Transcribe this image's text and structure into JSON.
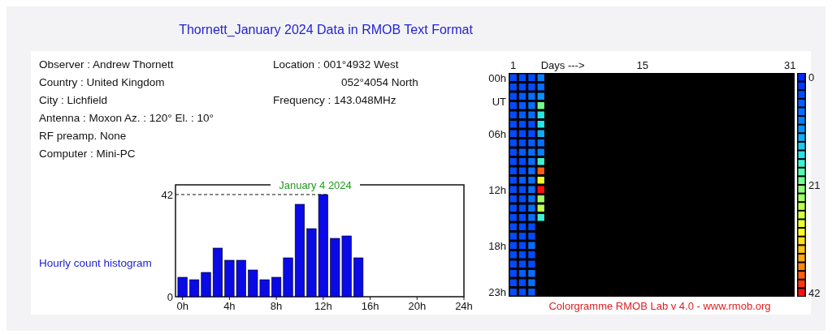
{
  "chart_data": [
    {
      "type": "other",
      "title": "Thornett_January 2024 Data in RMOB Text Format",
      "annotations": [
        "Observer : Andrew Thornett",
        "Country : United Kingdom",
        "City : Lichfield",
        "Antenna : Moxon    Az. : 120°  El. : 10°",
        "RF preamp. None",
        "Computer : Mini-PC",
        "Location : 001°4932 West",
        "052°4054 North",
        "Frequency : 143.048MHz"
      ]
    },
    {
      "type": "bar",
      "title": "January 4 2024",
      "ylabel": "Hourly count histogram",
      "x": [
        0,
        1,
        2,
        3,
        4,
        5,
        6,
        7,
        8,
        9,
        10,
        11,
        12,
        13,
        14,
        15
      ],
      "values": [
        8,
        7,
        10,
        20,
        15,
        15,
        11,
        7,
        8,
        16,
        38,
        28,
        42,
        24,
        25,
        16
      ],
      "color": "#0a0ae6",
      "xlim": [
        -0.6,
        24
      ],
      "xticks": [
        {
          "value": 0,
          "label": "0h"
        },
        {
          "value": 4,
          "label": "4h"
        },
        {
          "value": 8,
          "label": "8h"
        },
        {
          "value": 12,
          "label": "12h"
        },
        {
          "value": 16,
          "label": "16h"
        },
        {
          "value": 20,
          "label": "20h"
        },
        {
          "value": 24,
          "label": "24h"
        }
      ],
      "ylim": [
        0,
        42
      ],
      "yticks": [
        0,
        42
      ],
      "ref_lines": [
        {
          "axis": "y",
          "value": 42,
          "line_style": "dashed"
        }
      ]
    },
    {
      "type": "heatmap",
      "xlabel": "Days --->",
      "annotations": [
        "UT",
        "Colorgramme RMOB Lab v 4.0 - www.rmob.org"
      ],
      "clim": [
        0,
        42
      ],
      "cticks": [
        0,
        21,
        42
      ],
      "categories": [
        "1",
        null,
        null,
        null,
        null,
        null,
        null,
        null,
        null,
        null,
        null,
        null,
        null,
        null,
        "15",
        null,
        null,
        null,
        null,
        null,
        null,
        null,
        null,
        null,
        null,
        null,
        null,
        null,
        null,
        null,
        "31"
      ],
      "y_categories": [
        "00h",
        null,
        null,
        null,
        null,
        null,
        "06h",
        null,
        null,
        null,
        null,
        null,
        "12h",
        null,
        null,
        null,
        null,
        null,
        "18h",
        null,
        null,
        null,
        null,
        "23h"
      ],
      "cells": [
        [
          4,
          4,
          4,
          8,
          null,
          null,
          null,
          null,
          null,
          null,
          null,
          null,
          null,
          null,
          null,
          null,
          null,
          null,
          null,
          null,
          null,
          null,
          null,
          null,
          null,
          null,
          null,
          null,
          null,
          null,
          null
        ],
        [
          4,
          4,
          4,
          7,
          null,
          null,
          null,
          null,
          null,
          null,
          null,
          null,
          null,
          null,
          null,
          null,
          null,
          null,
          null,
          null,
          null,
          null,
          null,
          null,
          null,
          null,
          null,
          null,
          null,
          null,
          null
        ],
        [
          4,
          5,
          6,
          10,
          null,
          null,
          null,
          null,
          null,
          null,
          null,
          null,
          null,
          null,
          null,
          null,
          null,
          null,
          null,
          null,
          null,
          null,
          null,
          null,
          null,
          null,
          null,
          null,
          null,
          null,
          null
        ],
        [
          4,
          5,
          7,
          20,
          null,
          null,
          null,
          null,
          null,
          null,
          null,
          null,
          null,
          null,
          null,
          null,
          null,
          null,
          null,
          null,
          null,
          null,
          null,
          null,
          null,
          null,
          null,
          null,
          null,
          null,
          null
        ],
        [
          4,
          5,
          6,
          15,
          null,
          null,
          null,
          null,
          null,
          null,
          null,
          null,
          null,
          null,
          null,
          null,
          null,
          null,
          null,
          null,
          null,
          null,
          null,
          null,
          null,
          null,
          null,
          null,
          null,
          null,
          null
        ],
        [
          4,
          3,
          4,
          15,
          null,
          null,
          null,
          null,
          null,
          null,
          null,
          null,
          null,
          null,
          null,
          null,
          null,
          null,
          null,
          null,
          null,
          null,
          null,
          null,
          null,
          null,
          null,
          null,
          null,
          null,
          null
        ],
        [
          4,
          3,
          4,
          11,
          null,
          null,
          null,
          null,
          null,
          null,
          null,
          null,
          null,
          null,
          null,
          null,
          null,
          null,
          null,
          null,
          null,
          null,
          null,
          null,
          null,
          null,
          null,
          null,
          null,
          null,
          null
        ],
        [
          4,
          4,
          5,
          7,
          null,
          null,
          null,
          null,
          null,
          null,
          null,
          null,
          null,
          null,
          null,
          null,
          null,
          null,
          null,
          null,
          null,
          null,
          null,
          null,
          null,
          null,
          null,
          null,
          null,
          null,
          null
        ],
        [
          4,
          5,
          6,
          8,
          null,
          null,
          null,
          null,
          null,
          null,
          null,
          null,
          null,
          null,
          null,
          null,
          null,
          null,
          null,
          null,
          null,
          null,
          null,
          null,
          null,
          null,
          null,
          null,
          null,
          null,
          null
        ],
        [
          4,
          4,
          7,
          16,
          null,
          null,
          null,
          null,
          null,
          null,
          null,
          null,
          null,
          null,
          null,
          null,
          null,
          null,
          null,
          null,
          null,
          null,
          null,
          null,
          null,
          null,
          null,
          null,
          null,
          null,
          null
        ],
        [
          4,
          4,
          6,
          38,
          null,
          null,
          null,
          null,
          null,
          null,
          null,
          null,
          null,
          null,
          null,
          null,
          null,
          null,
          null,
          null,
          null,
          null,
          null,
          null,
          null,
          null,
          null,
          null,
          null,
          null,
          null
        ],
        [
          4,
          5,
          6,
          28,
          null,
          null,
          null,
          null,
          null,
          null,
          null,
          null,
          null,
          null,
          null,
          null,
          null,
          null,
          null,
          null,
          null,
          null,
          null,
          null,
          null,
          null,
          null,
          null,
          null,
          null,
          null
        ],
        [
          4,
          4,
          6,
          42,
          null,
          null,
          null,
          null,
          null,
          null,
          null,
          null,
          null,
          null,
          null,
          null,
          null,
          null,
          null,
          null,
          null,
          null,
          null,
          null,
          null,
          null,
          null,
          null,
          null,
          null,
          null
        ],
        [
          4,
          4,
          7,
          24,
          null,
          null,
          null,
          null,
          null,
          null,
          null,
          null,
          null,
          null,
          null,
          null,
          null,
          null,
          null,
          null,
          null,
          null,
          null,
          null,
          null,
          null,
          null,
          null,
          null,
          null,
          null
        ],
        [
          4,
          4,
          6,
          25,
          null,
          null,
          null,
          null,
          null,
          null,
          null,
          null,
          null,
          null,
          null,
          null,
          null,
          null,
          null,
          null,
          null,
          null,
          null,
          null,
          null,
          null,
          null,
          null,
          null,
          null,
          null
        ],
        [
          4,
          4,
          6,
          16,
          null,
          null,
          null,
          null,
          null,
          null,
          null,
          null,
          null,
          null,
          null,
          null,
          null,
          null,
          null,
          null,
          null,
          null,
          null,
          null,
          null,
          null,
          null,
          null,
          null,
          null,
          null
        ],
        [
          4,
          4,
          4,
          null,
          null,
          null,
          null,
          null,
          null,
          null,
          null,
          null,
          null,
          null,
          null,
          null,
          null,
          null,
          null,
          null,
          null,
          null,
          null,
          null,
          null,
          null,
          null,
          null,
          null,
          null,
          null
        ],
        [
          4,
          4,
          4,
          null,
          null,
          null,
          null,
          null,
          null,
          null,
          null,
          null,
          null,
          null,
          null,
          null,
          null,
          null,
          null,
          null,
          null,
          null,
          null,
          null,
          null,
          null,
          null,
          null,
          null,
          null,
          null
        ],
        [
          4,
          4,
          6,
          null,
          null,
          null,
          null,
          null,
          null,
          null,
          null,
          null,
          null,
          null,
          null,
          null,
          null,
          null,
          null,
          null,
          null,
          null,
          null,
          null,
          null,
          null,
          null,
          null,
          null,
          null,
          null
        ],
        [
          4,
          4,
          4,
          null,
          null,
          null,
          null,
          null,
          null,
          null,
          null,
          null,
          null,
          null,
          null,
          null,
          null,
          null,
          null,
          null,
          null,
          null,
          null,
          null,
          null,
          null,
          null,
          null,
          null,
          null,
          null
        ],
        [
          4,
          4,
          4,
          null,
          null,
          null,
          null,
          null,
          null,
          null,
          null,
          null,
          null,
          null,
          null,
          null,
          null,
          null,
          null,
          null,
          null,
          null,
          null,
          null,
          null,
          null,
          null,
          null,
          null,
          null,
          null
        ],
        [
          4,
          5,
          6,
          null,
          null,
          null,
          null,
          null,
          null,
          null,
          null,
          null,
          null,
          null,
          null,
          null,
          null,
          null,
          null,
          null,
          null,
          null,
          null,
          null,
          null,
          null,
          null,
          null,
          null,
          null,
          null
        ],
        [
          4,
          4,
          6,
          null,
          null,
          null,
          null,
          null,
          null,
          null,
          null,
          null,
          null,
          null,
          null,
          null,
          null,
          null,
          null,
          null,
          null,
          null,
          null,
          null,
          null,
          null,
          null,
          null,
          null,
          null,
          null
        ],
        [
          4,
          4,
          5,
          null,
          null,
          null,
          null,
          null,
          null,
          null,
          null,
          null,
          null,
          null,
          null,
          null,
          null,
          null,
          null,
          null,
          null,
          null,
          null,
          null,
          null,
          null,
          null,
          null,
          null,
          null,
          null
        ]
      ]
    }
  ]
}
